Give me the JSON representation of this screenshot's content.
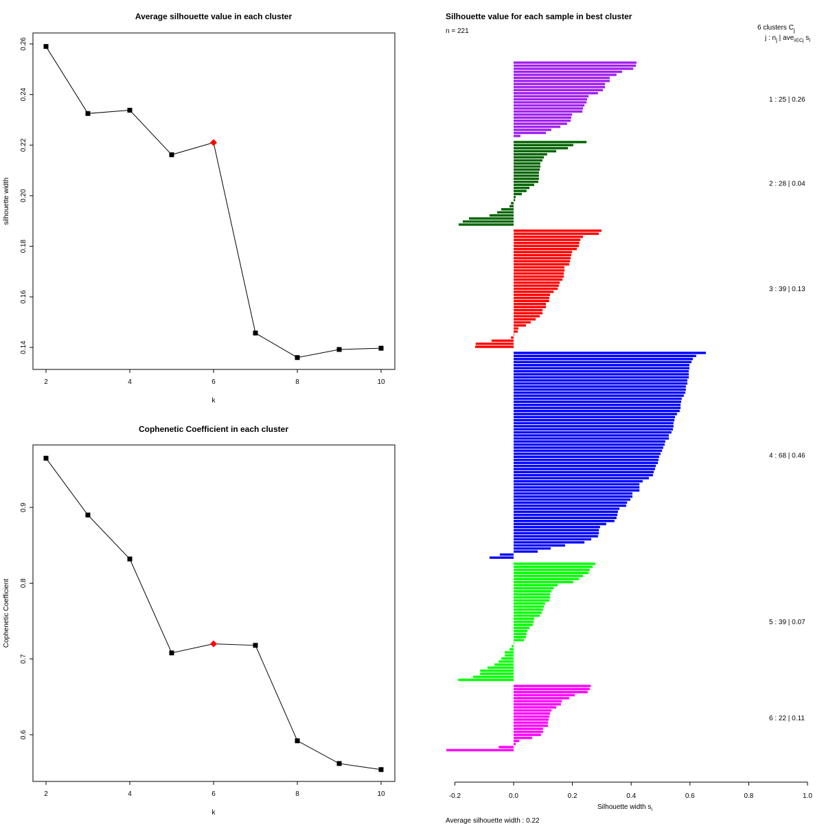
{
  "chart_data": [
    {
      "type": "line",
      "title": "Average silhouette value in each cluster",
      "xlabel": "k",
      "ylabel": "silhouette width",
      "x": [
        2,
        3,
        4,
        5,
        6,
        7,
        8,
        9,
        10
      ],
      "values": [
        0.259,
        0.2325,
        0.2338,
        0.2162,
        0.221,
        0.1457,
        0.136,
        0.1392,
        0.1397
      ],
      "highlight_x": 6,
      "highlight_color": "#ff0000",
      "xticks": [
        "2",
        "4",
        "6",
        "8",
        "10"
      ],
      "yticks": [
        "0.14",
        "0.16",
        "0.18",
        "0.20",
        "0.22",
        "0.24",
        "0.26"
      ],
      "xlim": [
        2,
        10
      ],
      "ylim": [
        0.14,
        0.26
      ],
      "grid": false
    },
    {
      "type": "line",
      "title": "Cophenetic Coefficient in each cluster",
      "xlabel": "k",
      "ylabel": "Cophenetic Coefficient",
      "x": [
        2,
        3,
        4,
        5,
        6,
        7,
        8,
        9,
        10
      ],
      "values": [
        0.965,
        0.89,
        0.832,
        0.708,
        0.72,
        0.718,
        0.592,
        0.562,
        0.554
      ],
      "highlight_x": 6,
      "highlight_color": "#ff0000",
      "xticks": [
        "2",
        "4",
        "6",
        "8",
        "10"
      ],
      "yticks": [
        "0.6",
        "0.7",
        "0.8",
        "0.9"
      ],
      "xlim": [
        2,
        10
      ],
      "ylim": [
        0.6,
        0.9
      ],
      "grid": false
    },
    {
      "type": "bar",
      "orientation": "horizontal",
      "title": "Silhouette value for each sample in best cluster",
      "subtitle": "n = 221",
      "xlabel": "Silhouette width s",
      "xlabel_sub": "i",
      "footer": "Average silhouette width :  0.22",
      "legend_header_1": "6  clusters  C",
      "legend_header_1_sub": "j",
      "legend_header_2": "j :  n",
      "legend_header_2_sub": "j",
      "legend_header_2b": " | ave",
      "legend_header_2b_sub": "i∈Cj",
      "legend_header_2c": "  s",
      "legend_header_2c_sub": "i",
      "xticks": [
        "-0.2",
        "0.0",
        "0.2",
        "0.4",
        "0.6",
        "0.8",
        "1.0"
      ],
      "xlim": [
        -0.2,
        1.0
      ],
      "clusters": [
        {
          "id": 1,
          "n": 25,
          "avg": "0.26",
          "label": "1 :  25  |  0.26",
          "color": "#a020f0",
          "values": [
            0.418,
            0.416,
            0.407,
            0.369,
            0.35,
            0.327,
            0.327,
            0.311,
            0.311,
            0.304,
            0.287,
            0.255,
            0.25,
            0.248,
            0.241,
            0.236,
            0.234,
            0.199,
            0.196,
            0.194,
            0.182,
            0.159,
            0.128,
            0.11,
            0.023
          ]
        },
        {
          "id": 2,
          "n": 28,
          "avg": "0.04",
          "label": "2 :  28  |  0.04",
          "color": "#006400",
          "values": [
            0.248,
            0.203,
            0.185,
            0.145,
            0.114,
            0.103,
            0.098,
            0.091,
            0.091,
            0.089,
            0.086,
            0.086,
            0.086,
            0.084,
            0.07,
            0.054,
            0.044,
            0.028,
            0.007,
            0.005,
            -0.009,
            -0.014,
            -0.042,
            -0.056,
            -0.082,
            -0.152,
            -0.173,
            -0.187
          ]
        },
        {
          "id": 3,
          "n": 39,
          "avg": "0.13",
          "label": "3 :  39  |  0.13",
          "color": "#ff0000",
          "values": [
            0.299,
            0.29,
            0.236,
            0.227,
            0.224,
            0.222,
            0.215,
            0.199,
            0.196,
            0.194,
            0.192,
            0.189,
            0.173,
            0.173,
            0.171,
            0.171,
            0.166,
            0.157,
            0.154,
            0.15,
            0.136,
            0.124,
            0.121,
            0.121,
            0.11,
            0.11,
            0.098,
            0.098,
            0.089,
            0.075,
            0.058,
            0.042,
            0.016,
            0.014,
            0.002,
            -0.009,
            -0.075,
            -0.129,
            -0.131
          ]
        },
        {
          "id": 4,
          "n": 68,
          "avg": "0.46",
          "label": "4 :  68  |  0.46",
          "color": "#0000ff",
          "values": [
            0.654,
            0.621,
            0.61,
            0.605,
            0.598,
            0.598,
            0.596,
            0.596,
            0.596,
            0.591,
            0.591,
            0.586,
            0.586,
            0.584,
            0.579,
            0.572,
            0.57,
            0.568,
            0.568,
            0.565,
            0.556,
            0.549,
            0.547,
            0.544,
            0.544,
            0.542,
            0.537,
            0.528,
            0.528,
            0.516,
            0.514,
            0.509,
            0.505,
            0.5,
            0.495,
            0.493,
            0.491,
            0.484,
            0.481,
            0.477,
            0.474,
            0.46,
            0.439,
            0.428,
            0.428,
            0.428,
            0.404,
            0.404,
            0.397,
            0.386,
            0.383,
            0.36,
            0.355,
            0.353,
            0.35,
            0.343,
            0.315,
            0.294,
            0.29,
            0.29,
            0.287,
            0.264,
            0.241,
            0.175,
            0.126,
            0.082,
            -0.047,
            -0.082
          ]
        },
        {
          "id": 5,
          "n": 39,
          "avg": "0.07",
          "label": "5 :  39  |  0.07",
          "color": "#00ff00",
          "values": [
            0.278,
            0.269,
            0.259,
            0.255,
            0.236,
            0.222,
            0.203,
            0.15,
            0.136,
            0.129,
            0.124,
            0.124,
            0.122,
            0.107,
            0.103,
            0.1,
            0.096,
            0.089,
            0.07,
            0.068,
            0.065,
            0.054,
            0.047,
            0.044,
            0.042,
            0.035,
            0.002,
            -0.007,
            -0.014,
            -0.03,
            -0.03,
            -0.042,
            -0.051,
            -0.065,
            -0.089,
            -0.114,
            -0.114,
            -0.138,
            -0.189
          ]
        },
        {
          "id": 6,
          "n": 22,
          "avg": "0.11",
          "label": "6 :  22  |  0.11",
          "color": "#ff00ff",
          "values": [
            0.262,
            0.259,
            0.252,
            0.208,
            0.189,
            0.164,
            0.161,
            0.145,
            0.129,
            0.124,
            0.122,
            0.119,
            0.117,
            0.117,
            0.1,
            0.1,
            0.093,
            0.063,
            0.019,
            0.007,
            -0.051,
            -0.229
          ]
        }
      ]
    }
  ]
}
